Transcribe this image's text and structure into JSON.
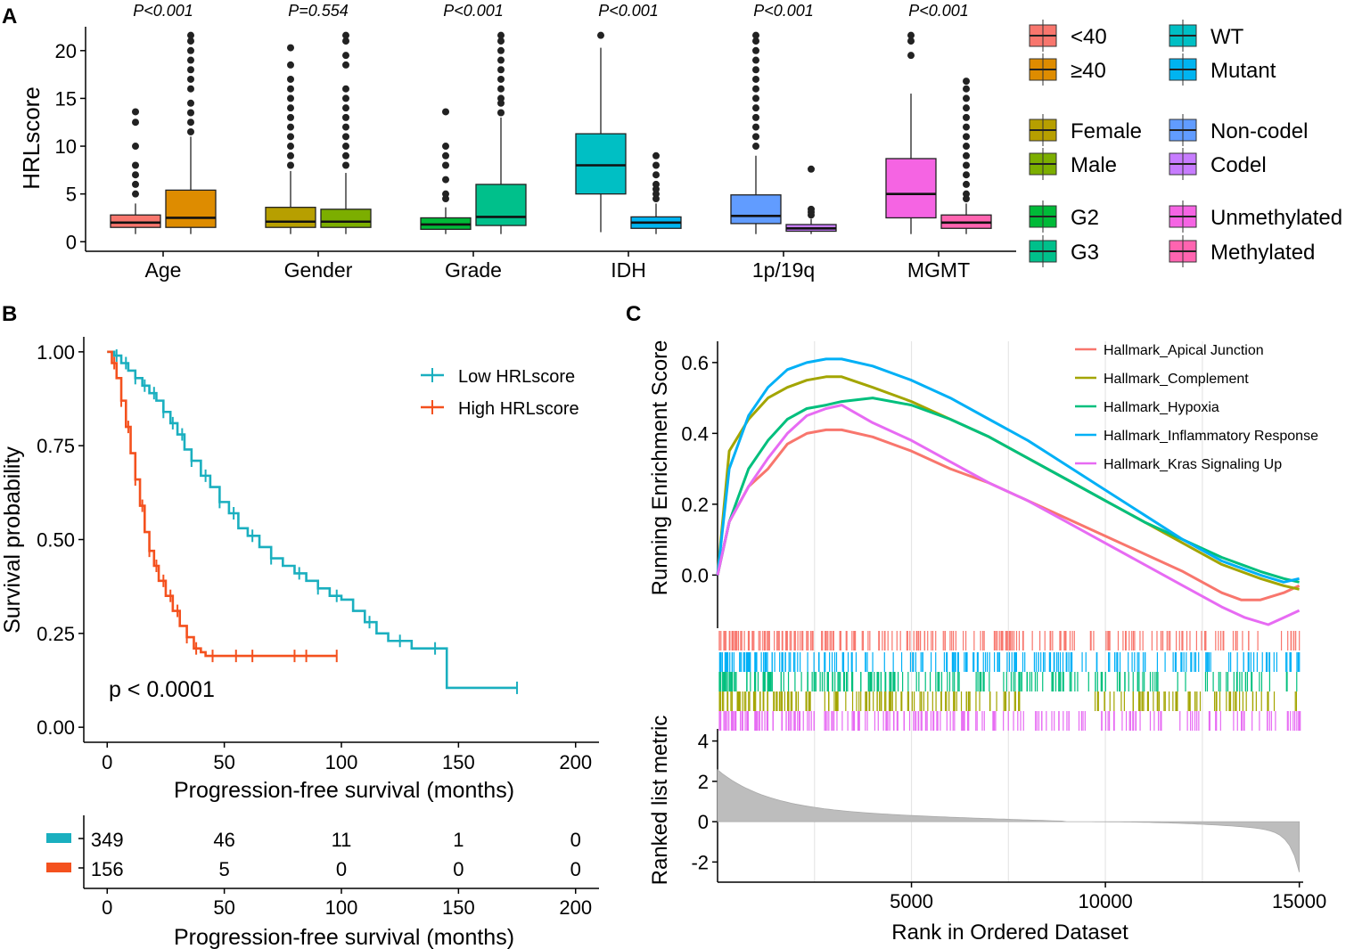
{
  "chart_data": [
    {
      "panel": "A",
      "type": "box",
      "ylabel": "HRLscore",
      "ylim": [
        -1,
        22.5
      ],
      "yticks": [
        0,
        5,
        10,
        15,
        20
      ],
      "groups": [
        {
          "label": "Age",
          "p": "P<0.001",
          "boxes": [
            {
              "name": "<40",
              "color": "#f8766d",
              "q1": 1.5,
              "median": 2.0,
              "q3": 2.8,
              "wlo": 0.8,
              "whi": 4.0,
              "outliers": [
                5,
                6,
                7,
                8,
                10,
                12.5,
                13.6
              ]
            },
            {
              "name": "≥40",
              "color": "#de8c00",
              "q1": 1.5,
              "median": 2.5,
              "q3": 5.4,
              "wlo": 0.8,
              "whi": 11,
              "outliers": [
                11.5,
                12.5,
                13.5,
                14.5,
                16,
                17,
                18,
                19,
                20,
                21,
                21.6
              ]
            }
          ]
        },
        {
          "label": "Gender",
          "p": "P=0.554",
          "boxes": [
            {
              "name": "Female",
              "color": "#b79f00",
              "q1": 1.5,
              "median": 2.1,
              "q3": 3.6,
              "wlo": 0.8,
              "whi": 7.4,
              "outliers": [
                8,
                9,
                10,
                11,
                12,
                13,
                14,
                15,
                16,
                17,
                18.5,
                20.3
              ]
            },
            {
              "name": "Male",
              "color": "#7cae00",
              "q1": 1.5,
              "median": 2.1,
              "q3": 3.4,
              "wlo": 0.8,
              "whi": 7.2,
              "outliers": [
                8,
                9,
                10,
                11,
                12,
                13,
                14,
                15,
                16,
                18.5,
                19.5,
                21,
                21.6
              ]
            }
          ]
        },
        {
          "label": "Grade",
          "p": "P<0.001",
          "boxes": [
            {
              "name": "G2",
              "color": "#00ba38",
              "q1": 1.3,
              "median": 1.8,
              "q3": 2.5,
              "wlo": 0.8,
              "whi": 3.6,
              "outliers": [
                4.5,
                5,
                6.5,
                8,
                9,
                10,
                13.6
              ]
            },
            {
              "name": "G3",
              "color": "#00c08b",
              "q1": 1.7,
              "median": 2.6,
              "q3": 6.0,
              "wlo": 0.8,
              "whi": 13,
              "outliers": [
                13.5,
                14.5,
                15,
                16,
                17,
                18,
                19,
                20,
                21,
                21.6
              ]
            }
          ]
        },
        {
          "label": "IDH",
          "p": "P<0.001",
          "boxes": [
            {
              "name": "WT",
              "color": "#00bfc4",
              "q1": 5.0,
              "median": 8.0,
              "q3": 11.3,
              "wlo": 1.0,
              "whi": 20.3,
              "outliers": [
                21.6
              ]
            },
            {
              "name": "Mutant",
              "color": "#00b4f0",
              "q1": 1.4,
              "median": 2.0,
              "q3": 2.6,
              "wlo": 0.8,
              "whi": 4.0,
              "outliers": [
                4.5,
                5,
                5.5,
                6,
                7,
                8,
                9
              ]
            }
          ]
        },
        {
          "label": "1p/19q",
          "p": "P<0.001",
          "boxes": [
            {
              "name": "Non-codel",
              "color": "#619cff",
              "q1": 1.9,
              "median": 2.7,
              "q3": 4.9,
              "wlo": 0.8,
              "whi": 9.0,
              "outliers": [
                10,
                11,
                12,
                13,
                14,
                15,
                16,
                17,
                18,
                19,
                20,
                21,
                21.6
              ]
            },
            {
              "name": "Codel",
              "color": "#c77cff",
              "q1": 1.1,
              "median": 1.4,
              "q3": 1.8,
              "wlo": 0.8,
              "whi": 2.4,
              "outliers": [
                2.8,
                3.1,
                3.4,
                7.6
              ]
            }
          ]
        },
        {
          "label": "MGMT",
          "p": "P<0.001",
          "boxes": [
            {
              "name": "Unmethylated",
              "color": "#f564e3",
              "q1": 2.5,
              "median": 5.0,
              "q3": 8.7,
              "wlo": 0.8,
              "whi": 15.5,
              "outliers": [
                19.5,
                21,
                21.6
              ]
            },
            {
              "name": "Methylated",
              "color": "#ff64b0",
              "q1": 1.4,
              "median": 2.0,
              "q3": 2.8,
              "wlo": 0.8,
              "whi": 4.0,
              "outliers": [
                4.5,
                5,
                6,
                7,
                8,
                9,
                10,
                11,
                12,
                13,
                14,
                15,
                16,
                16.8
              ]
            }
          ]
        }
      ],
      "legend": [
        {
          "label": "<40",
          "color": "#f8766d"
        },
        {
          "label": "WT",
          "color": "#00bfc4"
        },
        {
          "label": "≥40",
          "color": "#de8c00"
        },
        {
          "label": "Mutant",
          "color": "#00b4f0"
        },
        {
          "label": "Female",
          "color": "#b79f00"
        },
        {
          "label": "Non-codel",
          "color": "#619cff"
        },
        {
          "label": "Male",
          "color": "#7cae00"
        },
        {
          "label": "Codel",
          "color": "#c77cff"
        },
        {
          "label": "G2",
          "color": "#00ba38"
        },
        {
          "label": "Unmethylated",
          "color": "#f564e3"
        },
        {
          "label": "G3",
          "color": "#00c08b"
        },
        {
          "label": "Methylated",
          "color": "#ff64b0"
        }
      ]
    },
    {
      "panel": "B",
      "type": "line",
      "subtype": "kaplan-meier",
      "xlabel": "Progression-free survival (months)",
      "ylabel": "Survival probability",
      "xlim": [
        -10,
        210
      ],
      "ylim": [
        -0.04,
        1.04
      ],
      "xticks": [
        0,
        50,
        100,
        150,
        200
      ],
      "yticks": [
        0.0,
        0.25,
        0.5,
        0.75,
        1.0
      ],
      "ytick_labels": [
        "0.00",
        "0.25",
        "0.50",
        "0.75",
        "1.00"
      ],
      "pvalue": "p < 0.0001",
      "series": [
        {
          "name": "Low HRLscore",
          "color": "#1aafbf",
          "x": [
            0,
            3,
            6,
            9,
            12,
            15,
            18,
            21,
            24,
            27,
            30,
            33,
            36,
            40,
            44,
            48,
            52,
            56,
            60,
            65,
            70,
            75,
            80,
            85,
            90,
            95,
            100,
            105,
            110,
            115,
            120,
            130,
            140,
            145,
            175
          ],
          "y": [
            1.0,
            0.99,
            0.97,
            0.95,
            0.93,
            0.91,
            0.89,
            0.87,
            0.84,
            0.81,
            0.78,
            0.74,
            0.71,
            0.67,
            0.64,
            0.6,
            0.57,
            0.53,
            0.51,
            0.48,
            0.45,
            0.43,
            0.41,
            0.39,
            0.37,
            0.35,
            0.34,
            0.31,
            0.28,
            0.25,
            0.23,
            0.21,
            0.21,
            0.105,
            0.105
          ],
          "censors": [
            4,
            8,
            12,
            16,
            20,
            24,
            28,
            32,
            36,
            42,
            48,
            54,
            62,
            70,
            82,
            90,
            98,
            112,
            125,
            140,
            175
          ]
        },
        {
          "name": "High HRLscore",
          "color": "#f4511e",
          "x": [
            0,
            2,
            4,
            6,
            8,
            10,
            12,
            14,
            16,
            18,
            20,
            22,
            25,
            28,
            31,
            34,
            37,
            40,
            42,
            98
          ],
          "y": [
            1.0,
            0.97,
            0.93,
            0.87,
            0.8,
            0.73,
            0.66,
            0.59,
            0.52,
            0.47,
            0.43,
            0.39,
            0.35,
            0.31,
            0.27,
            0.24,
            0.21,
            0.2,
            0.19,
            0.19
          ],
          "censors": [
            3,
            6,
            9,
            12,
            15,
            18,
            21,
            24,
            27,
            30,
            34,
            38,
            45,
            55,
            62,
            80,
            85,
            98
          ]
        }
      ],
      "risk_table": {
        "xlabel": "Progression-free survival (months)",
        "times": [
          0,
          50,
          100,
          150,
          200
        ],
        "rows": [
          {
            "color": "#1aafbf",
            "counts": [
              "349",
              "46",
              "11",
              "1",
              "0"
            ]
          },
          {
            "color": "#f4511e",
            "counts": [
              "156",
              "5",
              "0",
              "0",
              "0"
            ]
          }
        ]
      }
    },
    {
      "panel": "C",
      "type": "line",
      "subtype": "gsea",
      "xlabel": "Rank in Ordered Dataset",
      "ylabel": "Running Enrichment Score",
      "ylabel_bottom": "Ranked list metric",
      "xlim": [
        0,
        15100
      ],
      "ylim": [
        -0.15,
        0.66
      ],
      "xticks": [
        5000,
        10000,
        15000
      ],
      "yticks": [
        0.0,
        0.2,
        0.4,
        0.6
      ],
      "ytick_labels": [
        "0.0",
        "0.2",
        "0.4",
        "0.6"
      ],
      "metric_ylim": [
        -3.0,
        4.6
      ],
      "metric_yticks": [
        -2,
        0,
        2,
        4
      ],
      "series": [
        {
          "name": "Hallmark_Apical Junction",
          "color": "#f8766d",
          "x": [
            0,
            300,
            800,
            1300,
            1800,
            2300,
            2800,
            3200,
            4000,
            5000,
            6000,
            7000,
            8000,
            9000,
            10000,
            11000,
            12000,
            13000,
            13500,
            14000,
            14600,
            15000
          ],
          "y": [
            0.0,
            0.15,
            0.25,
            0.3,
            0.37,
            0.4,
            0.41,
            0.41,
            0.39,
            0.35,
            0.3,
            0.26,
            0.21,
            0.16,
            0.11,
            0.06,
            0.01,
            -0.05,
            -0.07,
            -0.07,
            -0.05,
            -0.03
          ]
        },
        {
          "name": "Hallmark_Complement",
          "color": "#a3a500",
          "x": [
            0,
            300,
            800,
            1300,
            1800,
            2300,
            2800,
            3200,
            4000,
            5000,
            6000,
            7000,
            8000,
            9000,
            10000,
            11000,
            12000,
            13000,
            14000,
            14600,
            15000
          ],
          "y": [
            0.0,
            0.35,
            0.44,
            0.5,
            0.53,
            0.55,
            0.56,
            0.56,
            0.53,
            0.49,
            0.44,
            0.39,
            0.33,
            0.27,
            0.21,
            0.15,
            0.09,
            0.03,
            -0.01,
            -0.03,
            -0.04
          ]
        },
        {
          "name": "Hallmark_Hypoxia",
          "color": "#00bf7d",
          "x": [
            0,
            300,
            800,
            1300,
            1800,
            2300,
            2800,
            3200,
            4000,
            5000,
            6000,
            7000,
            8000,
            9000,
            10000,
            11000,
            12000,
            13000,
            14000,
            14600,
            15000
          ],
          "y": [
            0.0,
            0.15,
            0.3,
            0.38,
            0.44,
            0.47,
            0.48,
            0.49,
            0.5,
            0.48,
            0.44,
            0.39,
            0.33,
            0.27,
            0.21,
            0.15,
            0.1,
            0.05,
            0.01,
            -0.01,
            -0.02
          ]
        },
        {
          "name": "Hallmark_Inflammatory Response",
          "color": "#00b0f6",
          "x": [
            0,
            300,
            800,
            1300,
            1800,
            2300,
            2800,
            3200,
            4000,
            5000,
            6000,
            7000,
            8000,
            9000,
            10000,
            11000,
            12000,
            13000,
            14000,
            14600,
            15000
          ],
          "y": [
            0.0,
            0.3,
            0.45,
            0.53,
            0.58,
            0.6,
            0.61,
            0.61,
            0.59,
            0.55,
            0.5,
            0.44,
            0.38,
            0.31,
            0.24,
            0.17,
            0.1,
            0.04,
            0.0,
            -0.02,
            -0.01
          ]
        },
        {
          "name": "Hallmark_Kras Signaling Up",
          "color": "#e76bf3",
          "x": [
            0,
            300,
            800,
            1300,
            1800,
            2300,
            2800,
            3200,
            4000,
            5000,
            6000,
            7000,
            8000,
            9000,
            10000,
            11000,
            12000,
            13000,
            13600,
            14200,
            14600,
            15000
          ],
          "y": [
            0.0,
            0.15,
            0.25,
            0.33,
            0.4,
            0.45,
            0.47,
            0.48,
            0.43,
            0.38,
            0.32,
            0.26,
            0.21,
            0.15,
            0.09,
            0.03,
            -0.03,
            -0.09,
            -0.12,
            -0.14,
            -0.12,
            -0.1
          ]
        }
      ]
    }
  ],
  "panel_labels": {
    "a": "A",
    "b": "B",
    "c": "C"
  }
}
